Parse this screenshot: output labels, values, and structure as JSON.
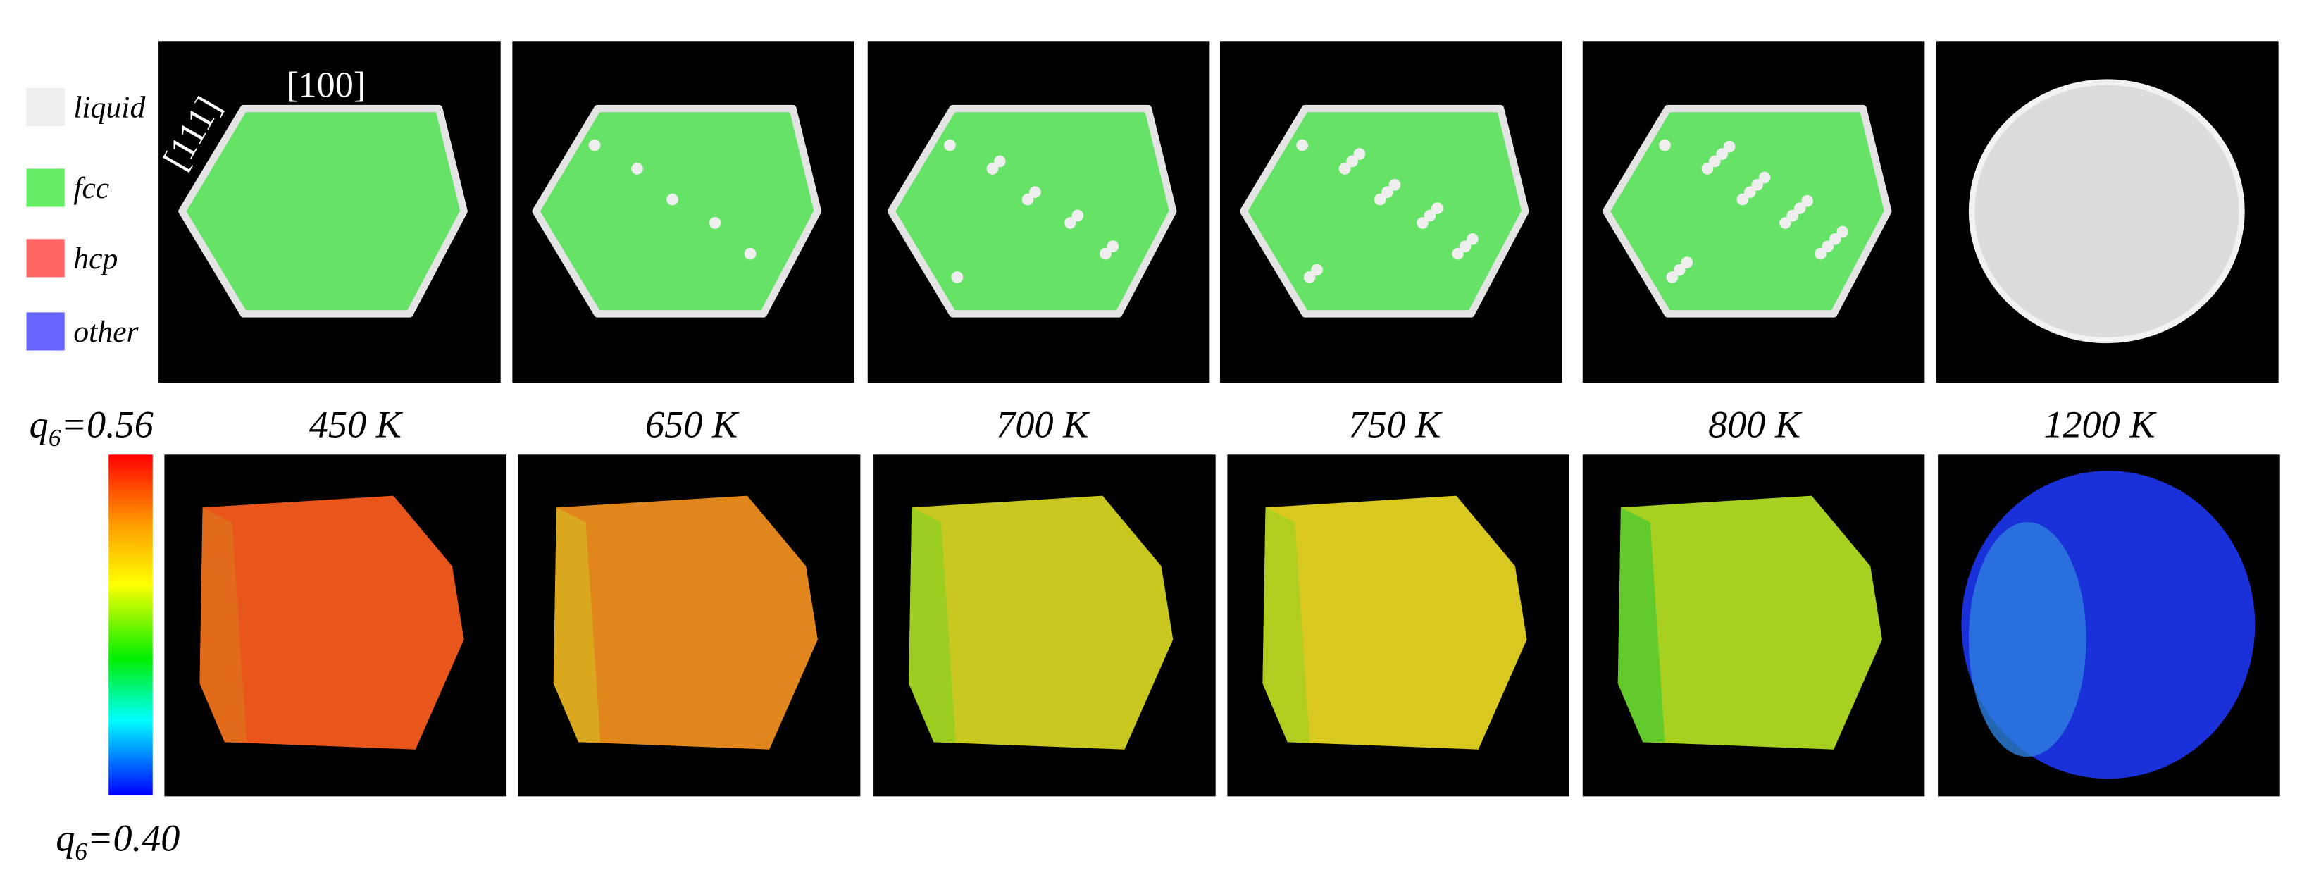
{
  "legend": {
    "items": [
      {
        "label": "liquid",
        "color": "#eeeeee"
      },
      {
        "label": "fcc",
        "color": "#66ee66"
      },
      {
        "label": "hcp",
        "color": "#ff6666"
      },
      {
        "label": "other",
        "color": "#6666ff"
      }
    ]
  },
  "directions": {
    "top": "[100]",
    "side": "[111]"
  },
  "colorbar": {
    "max": {
      "symbol": "q",
      "subscript": "6",
      "text": "=0.56"
    },
    "min": {
      "symbol": "q",
      "subscript": "6",
      "text": "=0.40"
    }
  },
  "temperatures": [
    "450 K",
    "650 K",
    "700 K",
    "750 K",
    "800 K",
    "1200 K"
  ]
}
